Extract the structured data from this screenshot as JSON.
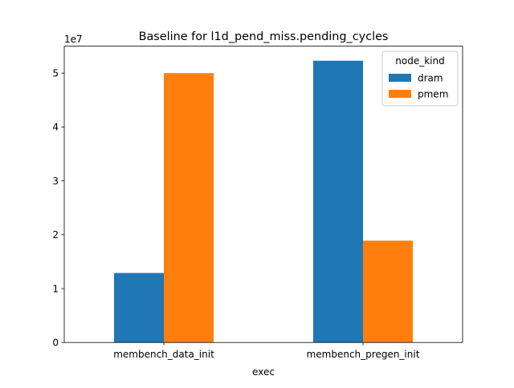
{
  "chart_data": {
    "type": "bar",
    "title": "Baseline for l1d_pend_miss.pending_cycles",
    "xlabel": "exec",
    "ylabel": "",
    "y_multiplier_label": "1e7",
    "categories": [
      "membench_data_init",
      "membench_pregen_init"
    ],
    "series": [
      {
        "name": "dram",
        "color": "#1f77b4",
        "values": [
          1.29,
          5.23
        ]
      },
      {
        "name": "pmem",
        "color": "#ff7f0e",
        "values": [
          5.0,
          1.89
        ]
      }
    ],
    "ylim": [
      0,
      5.5
    ],
    "yticks": [
      0,
      1,
      2,
      3,
      4,
      5
    ],
    "grid": false,
    "legend": {
      "title": "node_kind",
      "placement": "top-right"
    }
  }
}
